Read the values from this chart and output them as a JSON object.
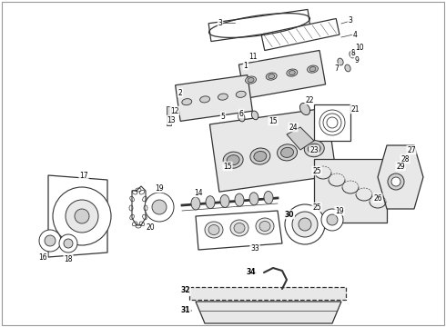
{
  "background_color": "#ffffff",
  "line_color": "#333333",
  "label_color": "#000000",
  "fig_width": 4.9,
  "fig_height": 3.6,
  "dpi": 100,
  "label_fontsize": 5.5,
  "border_lw": 0.8,
  "border_color": "#999999"
}
